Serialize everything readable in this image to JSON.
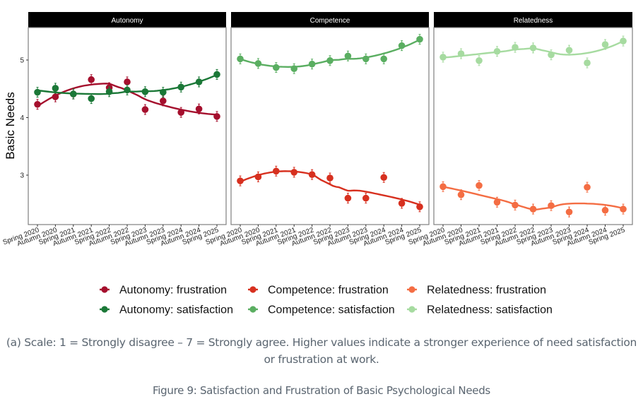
{
  "chart_data": {
    "type": "line",
    "subtype": "faceted line with points, error bars and smoothed trend",
    "ylabel": "Basic Needs",
    "xlabel": "",
    "ylim": [
      2.15,
      5.6
    ],
    "yticks": [
      3,
      4,
      5
    ],
    "grid": false,
    "legend_position": "bottom",
    "categories": [
      "Spring 2020",
      "Autumn 2020",
      "Spring 2021",
      "Autumn 2021",
      "Spring 2022",
      "Autumn 2022",
      "Spring 2023",
      "Autumn 2023",
      "Spring 2024",
      "Autumn 2024",
      "Spring 2025"
    ],
    "panels": [
      {
        "title": "Autonomy",
        "series": [
          {
            "name": "Autonomy: frustration",
            "color": "#A50F2D",
            "values": [
              4.23,
              4.36,
              4.41,
              4.66,
              4.52,
              4.62,
              4.14,
              4.29,
              4.09,
              4.15,
              4.02
            ]
          },
          {
            "name": "Autonomy: satisfaction",
            "color": "#1B7837",
            "values": [
              4.44,
              4.51,
              4.41,
              4.33,
              4.45,
              4.48,
              4.45,
              4.44,
              4.53,
              4.62,
              4.75
            ]
          }
        ]
      },
      {
        "title": "Competence",
        "series": [
          {
            "name": "Competence: frustration",
            "color": "#D7301F",
            "values": [
              2.9,
              2.97,
              3.07,
              3.05,
              3.01,
              2.95,
              2.6,
              2.6,
              2.96,
              2.51,
              2.45
            ]
          },
          {
            "name": "Competence: satisfaction",
            "color": "#5AAE61",
            "values": [
              5.02,
              4.94,
              4.87,
              4.85,
              4.93,
              4.99,
              5.07,
              5.02,
              5.02,
              5.25,
              5.36
            ]
          }
        ]
      },
      {
        "title": "Relatedness",
        "series": [
          {
            "name": "Relatedness: frustration",
            "color": "#F46D43",
            "values": [
              2.8,
              2.66,
              2.82,
              2.53,
              2.48,
              2.41,
              2.47,
              2.36,
              2.79,
              2.39,
              2.41
            ]
          },
          {
            "name": "Relatedness: satisfaction",
            "color": "#A6DBA0",
            "values": [
              5.05,
              5.11,
              4.99,
              5.15,
              5.22,
              5.21,
              5.09,
              5.17,
              4.95,
              5.27,
              5.33
            ]
          }
        ]
      }
    ],
    "legend": [
      {
        "label": "Autonomy: frustration",
        "color": "#A50F2D"
      },
      {
        "label": "Competence: frustration",
        "color": "#D7301F"
      },
      {
        "label": "Relatedness: frustration",
        "color": "#F46D43"
      },
      {
        "label": "Autonomy: satisfaction",
        "color": "#1B7837"
      },
      {
        "label": "Competence: satisfaction",
        "color": "#5AAE61"
      },
      {
        "label": "Relatedness: satisfaction",
        "color": "#A6DBA0"
      }
    ]
  },
  "caption": {
    "note": "(a) Scale: 1 = Strongly disagree – 7 = Strongly agree. Higher values indicate a stronger experience of need satisfaction or frustration at work.",
    "figure": "Figure 9: Satisfaction and Frustration of Basic Psychological Needs"
  }
}
